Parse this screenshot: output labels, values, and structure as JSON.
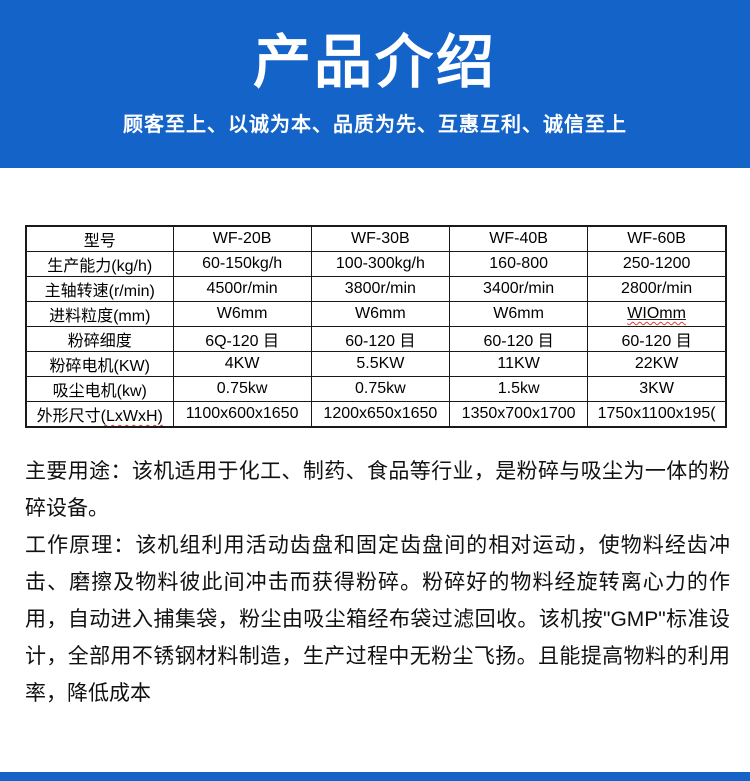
{
  "theme": {
    "primary_blue": "#1363c8",
    "table_border": "#1a1a1a",
    "squiggle_red": "#e23c2f",
    "background": "#ffffff"
  },
  "header": {
    "title": "产品介绍",
    "subtitle": "顾客至上、以诚为本、品质为先、互惠互利、诚信至上"
  },
  "table": {
    "header_row": [
      "型号",
      "WF-20B",
      "WF-30B",
      "WF-40B",
      "WF-60B"
    ],
    "rows": [
      {
        "label": "生产能力(kg/h)",
        "label_squiggle": "",
        "values": [
          "60-150kg/h",
          "100-300kg/h",
          "160-800",
          "250-1200"
        ],
        "squiggle_indexes": []
      },
      {
        "label": "主轴转速(r/min)",
        "label_squiggle": "",
        "values": [
          "4500r/min",
          "3800r/min",
          "3400r/min",
          "2800r/min"
        ],
        "squiggle_indexes": []
      },
      {
        "label": "进料粒度(mm)",
        "label_squiggle": "",
        "values": [
          "W6mm",
          "W6mm",
          "W6mm",
          "WIOmm"
        ],
        "squiggle_indexes": [
          3
        ]
      },
      {
        "label": "粉碎细度",
        "label_squiggle": "",
        "values": [
          "6Q-120 目",
          "60-120 目",
          "60-120 目",
          "60-120 目"
        ],
        "squiggle_indexes": []
      },
      {
        "label": "粉碎电机(KW)",
        "label_squiggle": "",
        "values": [
          "4KW",
          "5.5KW",
          "11KW",
          "22KW"
        ],
        "squiggle_indexes": []
      },
      {
        "label": "吸尘电机(kw)",
        "label_squiggle": "",
        "values": [
          "0.75kw",
          "0.75kw",
          "1.5kw",
          "3KW"
        ],
        "squiggle_indexes": []
      },
      {
        "label": "外形尺寸",
        "label_squiggle": "(LxWxH)",
        "values": [
          "1100x600x1650",
          "1200x650x1650",
          "1350x700x1700",
          "1750x1100x195("
        ],
        "squiggle_indexes": []
      }
    ]
  },
  "description": {
    "usage": "主要用途：该机适用于化工、制药、食品等行业，是粉碎与吸尘为一体的粉碎设备。",
    "principle": "工作原理：该机组利用活动齿盘和固定齿盘间的相对运动，使物料经齿冲击、磨擦及物料彼此间冲击而获得粉碎。粉碎好的物料经旋转离心力的作用，自动进入捕集袋，粉尘由吸尘箱经布袋过滤回收。该机按\"GMP\"标准设计，全部用不锈钢材料制造，生产过程中无粉尘飞扬。且能提高物料的利用率，降低成本"
  }
}
